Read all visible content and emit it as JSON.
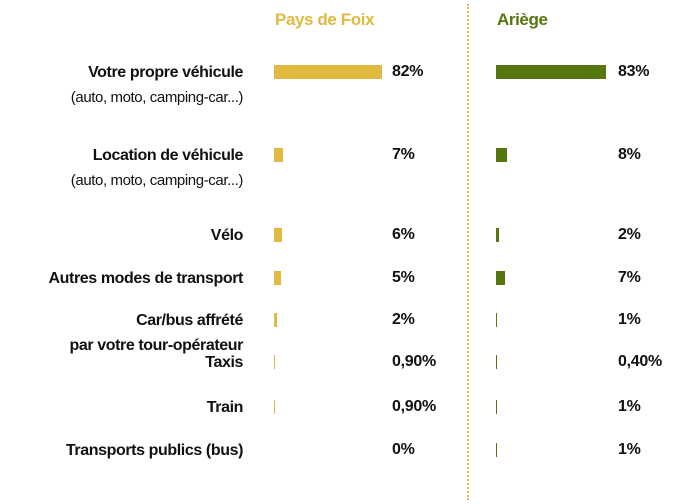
{
  "chart_data": {
    "type": "bar",
    "categories": [
      "Votre propre véhicule",
      "Location de véhicule",
      "Vélo",
      "Autres modes de transport",
      "Car/bus affrété\npar votre tour-opérateur",
      "Taxis",
      "Train",
      "Transports publics (bus)"
    ],
    "category_notes": [
      "(auto, moto, camping-car...)",
      "(auto, moto, camping-car...)",
      null,
      null,
      null,
      null,
      null,
      null
    ],
    "series": [
      {
        "name": "Pays de Foix",
        "color": "#e1b840",
        "values": [
          82,
          7,
          6,
          5,
          2,
          0.9,
          0.9,
          0
        ],
        "value_labels": [
          "82%",
          "7%",
          "6%",
          "5%",
          "2%",
          "0,90%",
          "0,90%",
          "0%"
        ]
      },
      {
        "name": "Ariège",
        "color": "#56760f",
        "values": [
          83,
          8,
          2,
          7,
          1,
          0.4,
          1,
          1
        ],
        "value_labels": [
          "83%",
          "8%",
          "2%",
          "7%",
          "1%",
          "0,40%",
          "1%",
          "1%"
        ]
      }
    ]
  }
}
